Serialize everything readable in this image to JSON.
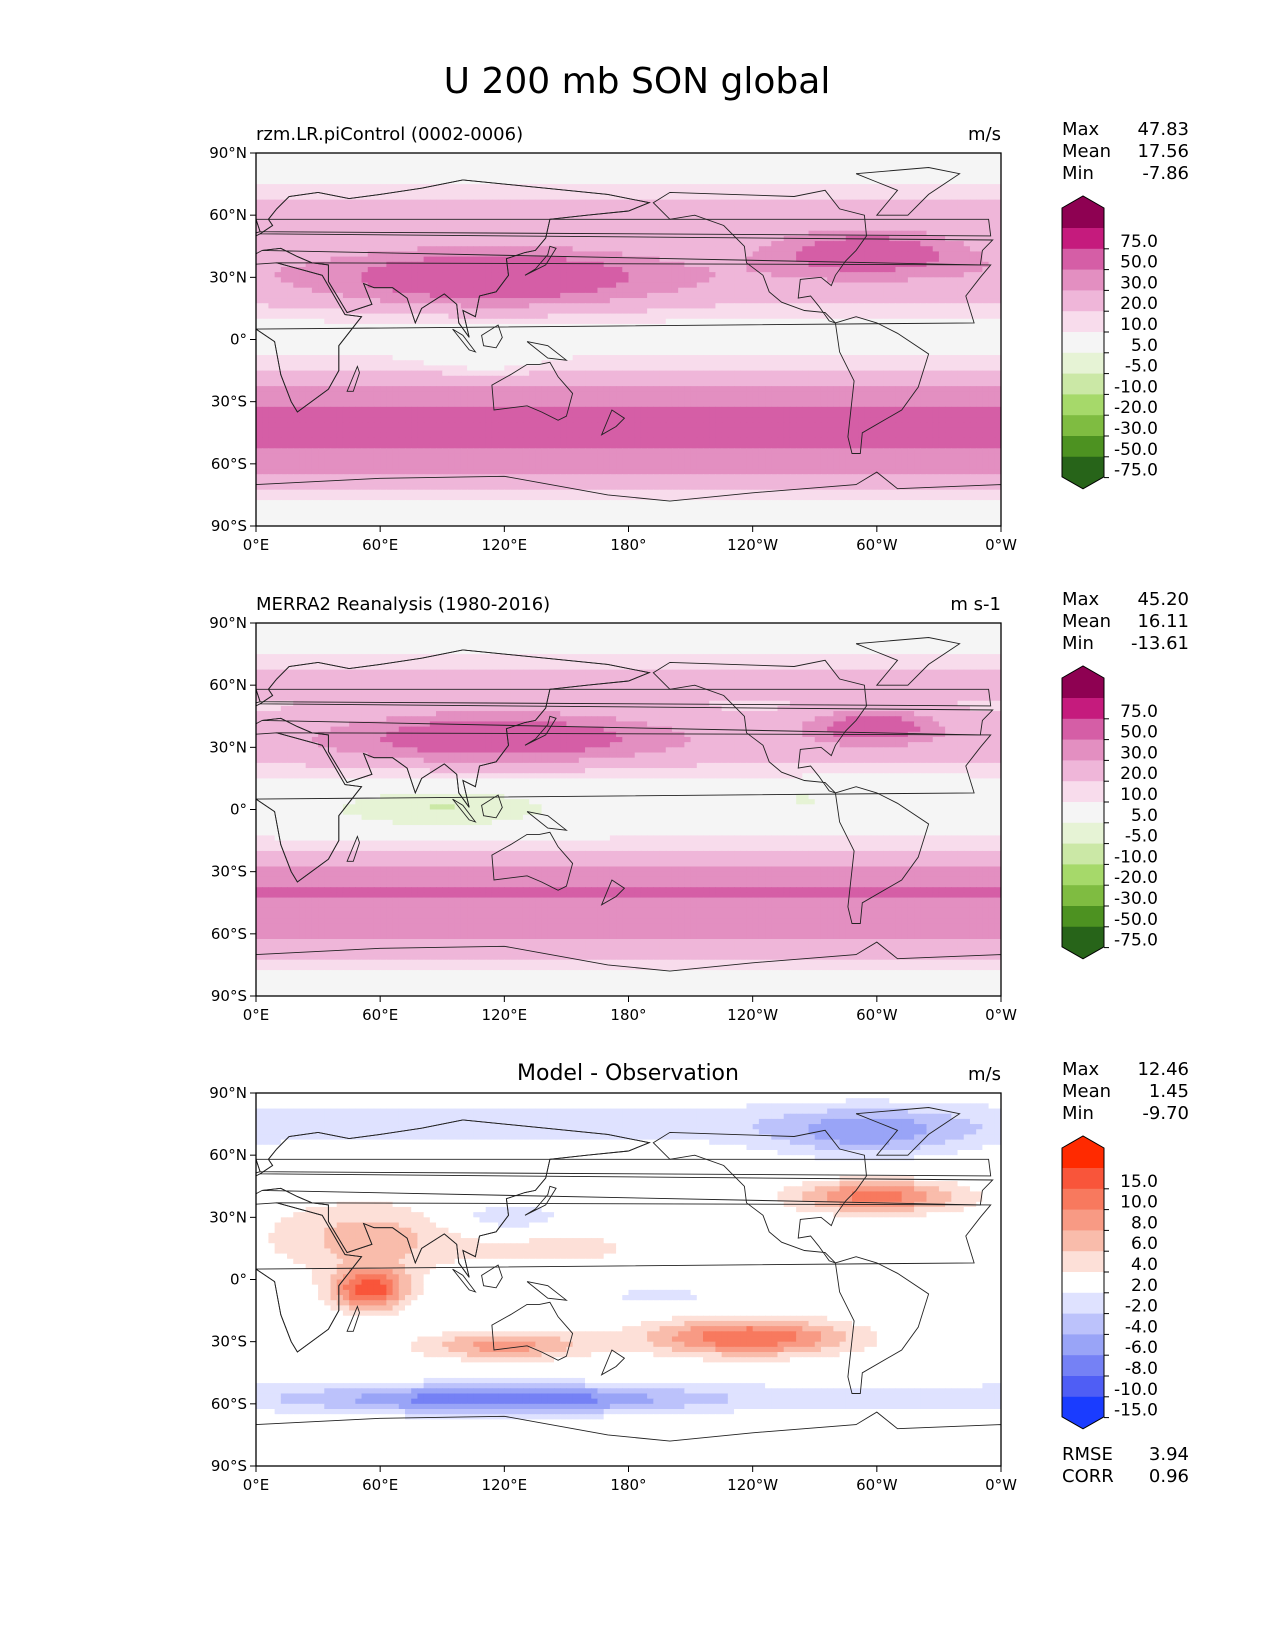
{
  "title": "U 200 mb SON global",
  "chart_data": [
    {
      "type": "heatmap",
      "subtitle": "rzm.LR.piControl (0002-0006)",
      "units": "m/s",
      "stats": {
        "max_label": "Max",
        "max": "47.83",
        "mean_label": "Mean",
        "mean": "17.56",
        "min_label": "Min",
        "min": "-7.86"
      },
      "x_ticks": [
        "0°E",
        "60°E",
        "120°E",
        "180°",
        "120°W",
        "60°W",
        "0°W"
      ],
      "y_ticks": [
        "90°N",
        "60°N",
        "30°N",
        "0°",
        "30°S",
        "60°S",
        "90°S"
      ],
      "xlim": [
        0,
        360
      ],
      "ylim": [
        -90,
        90
      ],
      "colorbar_labels": [
        "75.0",
        "50.0",
        "30.0",
        "20.0",
        "10.0",
        "5.0",
        "-5.0",
        "-10.0",
        "-20.0",
        "-30.0",
        "-50.0",
        "-75.0"
      ],
      "colorbar_colors": [
        "#8e0152",
        "#c51b7d",
        "#d55ea6",
        "#e38fc1",
        "#efb6d9",
        "#f8dcec",
        "#f5f5f5",
        "#e6f3d5",
        "#cbe8a6",
        "#a6d96a",
        "#7fbc41",
        "#4d9221",
        "#276419"
      ],
      "features": [
        {
          "kind": "band",
          "lat": 62,
          "lon_from": 0,
          "lon_to": 360,
          "width": 14,
          "value": 12
        },
        {
          "kind": "band",
          "lat": 30,
          "lon_from": 0,
          "lon_to": 360,
          "width": 18,
          "value": 15
        },
        {
          "kind": "blob",
          "lat": 30,
          "lon": 115,
          "width": 75,
          "height": 14,
          "value": 32
        },
        {
          "kind": "blob",
          "lat": 42,
          "lon": 295,
          "width": 45,
          "height": 10,
          "value": 33
        },
        {
          "kind": "band",
          "lat": -38,
          "lon_from": 0,
          "lon_to": 360,
          "width": 22,
          "value": 32
        },
        {
          "kind": "band",
          "lat": -62,
          "lon_from": 0,
          "lon_to": 360,
          "width": 14,
          "value": 14
        },
        {
          "kind": "blob",
          "lat": -8,
          "lon": 110,
          "width": 28,
          "height": 10,
          "value": -7
        },
        {
          "kind": "blob",
          "lat": -2,
          "lon": 260,
          "width": 14,
          "height": 4,
          "value": -6
        }
      ]
    },
    {
      "type": "heatmap",
      "subtitle": "MERRA2 Reanalysis (1980-2016)",
      "units": "m s-1",
      "stats": {
        "max_label": "Max",
        "max": "45.20",
        "mean_label": "Mean",
        "mean": "16.11",
        "min_label": "Min",
        "min": "-13.61"
      },
      "x_ticks": [
        "0°E",
        "60°E",
        "120°E",
        "180°",
        "120°W",
        "60°W",
        "0°W"
      ],
      "y_ticks": [
        "90°N",
        "60°N",
        "30°N",
        "0°",
        "30°S",
        "60°S",
        "90°S"
      ],
      "xlim": [
        0,
        360
      ],
      "ylim": [
        -90,
        90
      ],
      "colorbar_labels": [
        "75.0",
        "50.0",
        "30.0",
        "20.0",
        "10.0",
        "5.0",
        "-5.0",
        "-10.0",
        "-20.0",
        "-30.0",
        "-50.0",
        "-75.0"
      ],
      "colorbar_colors": [
        "#8e0152",
        "#c51b7d",
        "#d55ea6",
        "#e38fc1",
        "#efb6d9",
        "#f8dcec",
        "#f5f5f5",
        "#e6f3d5",
        "#cbe8a6",
        "#a6d96a",
        "#7fbc41",
        "#4d9221",
        "#276419"
      ],
      "features": [
        {
          "kind": "band",
          "lat": 62,
          "lon_from": 0,
          "lon_to": 360,
          "width": 14,
          "value": 11
        },
        {
          "kind": "band",
          "lat": 32,
          "lon_from": 0,
          "lon_to": 360,
          "width": 16,
          "value": 13
        },
        {
          "kind": "blob",
          "lat": 35,
          "lon": 118,
          "width": 75,
          "height": 12,
          "value": 31
        },
        {
          "kind": "blob",
          "lat": 40,
          "lon": 298,
          "width": 30,
          "height": 8,
          "value": 31
        },
        {
          "kind": "band",
          "lat": -40,
          "lon_from": 0,
          "lon_to": 360,
          "width": 20,
          "value": 30
        },
        {
          "kind": "band",
          "lat": -64,
          "lon_from": 0,
          "lon_to": 360,
          "width": 12,
          "value": 12
        },
        {
          "kind": "blob",
          "lat": 0,
          "lon": 90,
          "width": 60,
          "height": 11,
          "value": -11
        },
        {
          "kind": "blob",
          "lat": 5,
          "lon": 265,
          "width": 18,
          "height": 4,
          "value": -7
        }
      ]
    },
    {
      "type": "heatmap",
      "subtitle": "Model - Observation",
      "units": "m/s",
      "stats": {
        "max_label": "Max",
        "max": "12.46",
        "mean_label": "Mean",
        "mean": "1.45",
        "min_label": "Min",
        "min": "-9.70"
      },
      "metrics": {
        "rmse_label": "RMSE",
        "rmse": "3.94",
        "corr_label": "CORR",
        "corr": "0.96"
      },
      "x_ticks": [
        "0°E",
        "60°E",
        "120°E",
        "180°",
        "120°W",
        "60°W",
        "0°W"
      ],
      "y_ticks": [
        "90°N",
        "60°N",
        "30°N",
        "0°",
        "30°S",
        "60°S",
        "90°S"
      ],
      "xlim": [
        0,
        360
      ],
      "ylim": [
        -90,
        90
      ],
      "colorbar_labels": [
        "15.0",
        "10.0",
        "8.0",
        "6.0",
        "4.0",
        "2.0",
        "-2.0",
        "-4.0",
        "-6.0",
        "-8.0",
        "-10.0",
        "-15.0"
      ],
      "colorbar_colors": [
        "#ff2a00",
        "#f9553a",
        "#f8795e",
        "#f89a84",
        "#f9bcab",
        "#fde0d8",
        "#ffffff",
        "#dfe2ff",
        "#bcc2fb",
        "#99a4f7",
        "#7581f5",
        "#4f5ef5",
        "#1a3cff"
      ],
      "features": [
        {
          "kind": "band",
          "lat": 75,
          "lon_from": 0,
          "lon_to": 360,
          "width": 12,
          "value": -3
        },
        {
          "kind": "blob",
          "lat": 70,
          "lon": 295,
          "width": 45,
          "height": 12,
          "value": -5
        },
        {
          "kind": "blob",
          "lat": 30,
          "lon": 120,
          "width": 30,
          "height": 8,
          "value": -4
        },
        {
          "kind": "blob",
          "lat": 40,
          "lon": 300,
          "width": 40,
          "height": 8,
          "value": 9
        },
        {
          "kind": "blob",
          "lat": 20,
          "lon": 55,
          "width": 50,
          "height": 18,
          "value": 5
        },
        {
          "kind": "blob",
          "lat": -5,
          "lon": 55,
          "width": 18,
          "height": 10,
          "value": 11
        },
        {
          "kind": "blob",
          "lat": -32,
          "lon": 120,
          "width": 40,
          "height": 7,
          "value": 7
        },
        {
          "kind": "blob",
          "lat": -28,
          "lon": 238,
          "width": 50,
          "height": 9,
          "value": 10
        },
        {
          "kind": "blob",
          "lat": -58,
          "lon": 120,
          "width": 80,
          "height": 7,
          "value": -7
        },
        {
          "kind": "band",
          "lat": -57,
          "lon_from": 0,
          "lon_to": 360,
          "width": 8,
          "value": -3
        },
        {
          "kind": "blob",
          "lat": -8,
          "lon": 195,
          "width": 30,
          "height": 4,
          "value": -3
        },
        {
          "kind": "blob",
          "lat": 15,
          "lon": 150,
          "width": 40,
          "height": 8,
          "value": 3
        }
      ]
    }
  ]
}
